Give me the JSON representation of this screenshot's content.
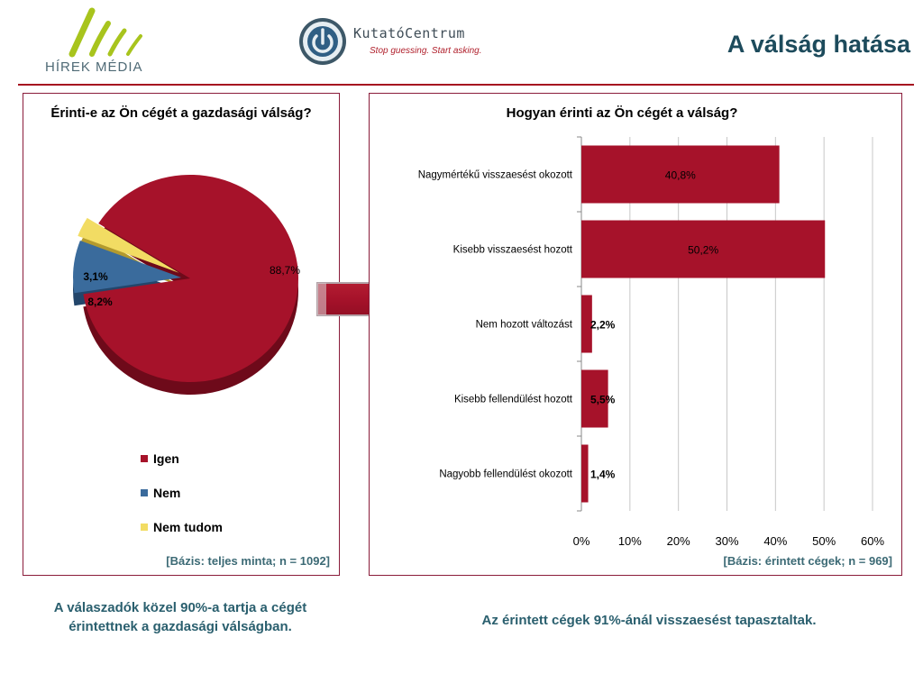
{
  "header": {
    "hirek_logo_text": "HÍREK MÉDIA",
    "kutato_name": "KutatóCentrum",
    "kutato_tagline": "Stop guessing. Start asking.",
    "slide_title": "A válság hatása"
  },
  "colors": {
    "igen": "#a6122a",
    "nem": "#3a6b9c",
    "nem_tudom": "#f2dc63",
    "bar": "#a6122a",
    "accent": "#a6111f",
    "logo_green": "#a8c41d"
  },
  "pie_panel": {
    "basis": "[Bázis: teljes minta; n = 1092]"
  },
  "bar_panel": {
    "basis": "[Bázis: érintett cégek; n = 969]"
  },
  "captions": {
    "left_line1": "A válaszadók közel 90%-a tartja a cégét",
    "left_line2": "érintettnek a gazdasági válságban.",
    "right": "Az érintett cégek 91%-ánál visszaesést tapasztaltak."
  },
  "chart_data": [
    {
      "type": "pie",
      "title": "Érinti-e az Ön cégét a gazdasági válság?",
      "categories": [
        "Igen",
        "Nem",
        "Nem tudom"
      ],
      "values": [
        88.7,
        8.2,
        3.1
      ],
      "data_labels": [
        "88,7%",
        "8,2%",
        "3,1%"
      ],
      "legend_position": "bottom"
    },
    {
      "type": "bar",
      "orientation": "horizontal",
      "title": "Hogyan érinti az Ön cégét a válság?",
      "categories": [
        "Nagymértékű visszaesést okozott",
        "Kisebb visszaesést hozott",
        "Nem hozott változást",
        "Kisebb fellendülést hozott",
        "Nagyobb fellendülést okozott"
      ],
      "values": [
        40.8,
        50.2,
        2.2,
        5.5,
        1.4
      ],
      "data_labels": [
        "40,8%",
        "50,2%",
        "2,2%",
        "5,5%",
        "1,4%"
      ],
      "xlim": [
        0,
        60
      ],
      "xticks": [
        "0%",
        "10%",
        "20%",
        "30%",
        "40%",
        "50%",
        "60%"
      ],
      "grid": true
    }
  ]
}
